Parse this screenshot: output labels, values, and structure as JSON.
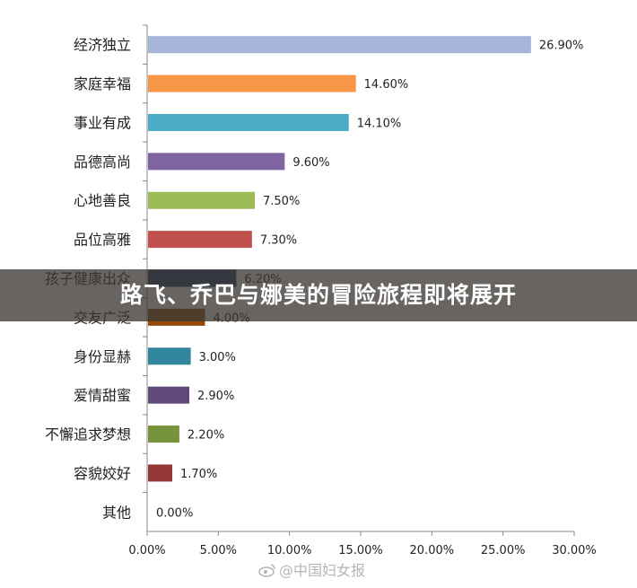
{
  "chart_data": {
    "type": "bar",
    "orientation": "horizontal",
    "categories": [
      "经济独立",
      "家庭幸福",
      "事业有成",
      "品德高尚",
      "心地善良",
      "品位高雅",
      "孩子健康出众",
      "交友广泛",
      "身份显赫",
      "爱情甜蜜",
      "不懈追求梦想",
      "容貌姣好",
      "其他"
    ],
    "values": [
      26.9,
      14.6,
      14.1,
      9.6,
      7.5,
      7.3,
      6.2,
      4.0,
      3.0,
      2.9,
      2.2,
      1.7,
      0.0
    ],
    "data_labels": [
      "26.90%",
      "14.60%",
      "14.10%",
      "9.60%",
      "7.50%",
      "7.30%",
      "6.20%",
      "4.00%",
      "3.00%",
      "2.90%",
      "2.20%",
      "1.70%",
      "0.00%"
    ],
    "colors": [
      "#a5b4d8",
      "#f79646",
      "#4bacc6",
      "#8064a2",
      "#9bbb59",
      "#c0504d",
      "#1f3864",
      "#984807",
      "#31859c",
      "#604a7b",
      "#77933c",
      "#953735",
      "#cccccc"
    ],
    "xlim": [
      0,
      30
    ],
    "x_ticks": [
      "0.00%",
      "5.00%",
      "10.00%",
      "15.00%",
      "20.00%",
      "25.00%",
      "30.00%"
    ],
    "grid": false,
    "legend": "none"
  },
  "banner": {
    "title": "路飞、乔巴与娜美的冒险旅程即将展开"
  },
  "watermark": {
    "text": "@中国妇女报"
  }
}
